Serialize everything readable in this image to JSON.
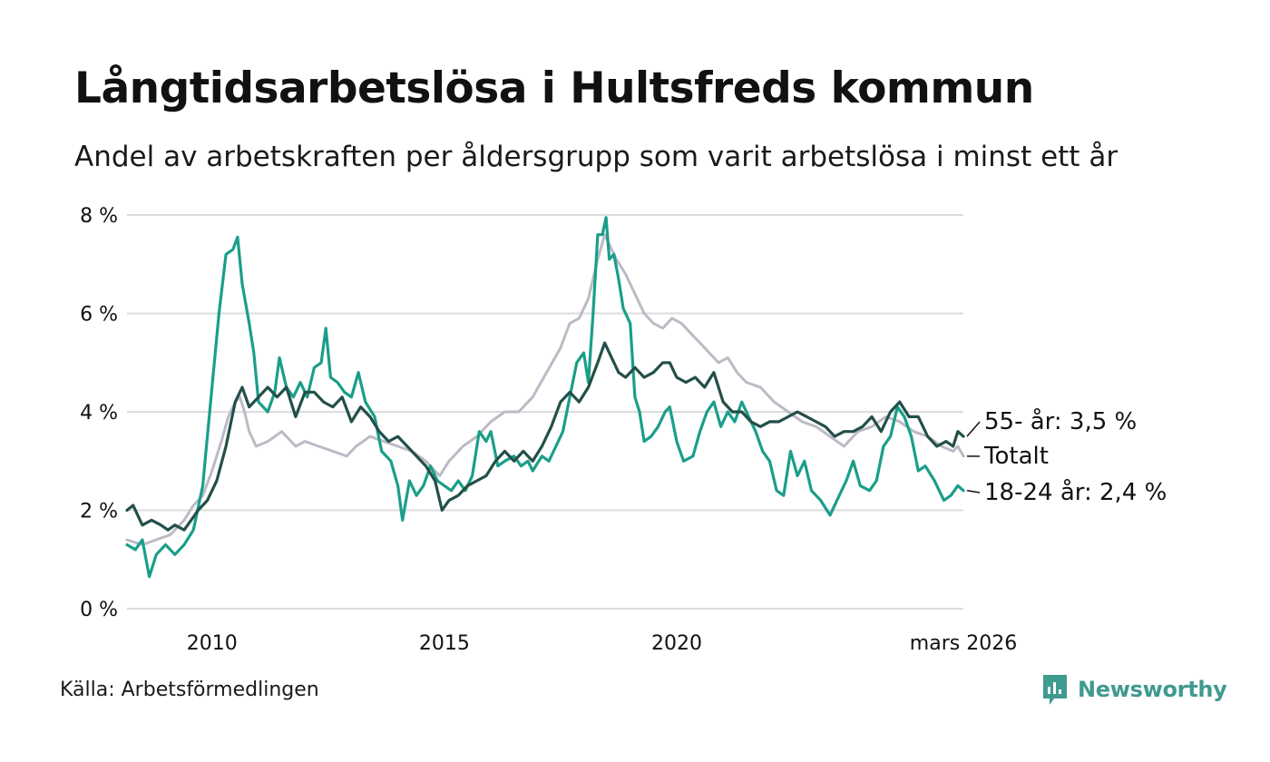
{
  "title": "Långtidsarbetslösa i Hultsfreds kommun",
  "subtitle": "Andel av arbetskraften per åldersgrupp som varit arbetslösa i minst ett år",
  "source": "Källa: Arbetsförmedlingen",
  "brand": {
    "name": "Newsworthy",
    "icon": "newsworthy-logo-icon",
    "color": "#3f9a8f"
  },
  "chart_data": {
    "type": "line",
    "ylim": [
      0,
      8
    ],
    "xlim": [
      2008.17,
      2026.17
    ],
    "yticks": [
      {
        "value": 0,
        "label": "0 %"
      },
      {
        "value": 2,
        "label": "2 %"
      },
      {
        "value": 4,
        "label": "4 %"
      },
      {
        "value": 6,
        "label": "6 %"
      },
      {
        "value": 8,
        "label": "8 %"
      }
    ],
    "xticks": [
      {
        "value": 2010,
        "label": "2010"
      },
      {
        "value": 2015,
        "label": "2015"
      },
      {
        "value": 2020,
        "label": "2020"
      },
      {
        "value": 2026.17,
        "label": "mars 2026"
      }
    ],
    "grid": true,
    "series": [
      {
        "name": "Totalt",
        "label": "Totalt",
        "color": "#bdbac6",
        "points": [
          [
            2008.17,
            1.4
          ],
          [
            2008.5,
            1.3
          ],
          [
            2008.8,
            1.4
          ],
          [
            2009.1,
            1.5
          ],
          [
            2009.4,
            1.8
          ],
          [
            2009.6,
            2.1
          ],
          [
            2009.8,
            2.3
          ],
          [
            2010.0,
            2.8
          ],
          [
            2010.2,
            3.4
          ],
          [
            2010.35,
            3.9
          ],
          [
            2010.5,
            4.2
          ],
          [
            2010.6,
            4.3
          ],
          [
            2010.7,
            4.0
          ],
          [
            2010.8,
            3.6
          ],
          [
            2010.95,
            3.3
          ],
          [
            2011.2,
            3.4
          ],
          [
            2011.5,
            3.6
          ],
          [
            2011.8,
            3.3
          ],
          [
            2012.0,
            3.4
          ],
          [
            2012.3,
            3.3
          ],
          [
            2012.6,
            3.2
          ],
          [
            2012.9,
            3.1
          ],
          [
            2013.1,
            3.3
          ],
          [
            2013.4,
            3.5
          ],
          [
            2013.7,
            3.4
          ],
          [
            2014.0,
            3.3
          ],
          [
            2014.3,
            3.2
          ],
          [
            2014.6,
            3.0
          ],
          [
            2014.9,
            2.7
          ],
          [
            2015.1,
            3.0
          ],
          [
            2015.4,
            3.3
          ],
          [
            2015.7,
            3.5
          ],
          [
            2016.0,
            3.8
          ],
          [
            2016.3,
            4.0
          ],
          [
            2016.6,
            4.0
          ],
          [
            2016.9,
            4.3
          ],
          [
            2017.2,
            4.8
          ],
          [
            2017.5,
            5.3
          ],
          [
            2017.7,
            5.8
          ],
          [
            2017.9,
            5.9
          ],
          [
            2018.1,
            6.3
          ],
          [
            2018.3,
            7.1
          ],
          [
            2018.45,
            7.6
          ],
          [
            2018.55,
            7.4
          ],
          [
            2018.7,
            7.1
          ],
          [
            2018.9,
            6.8
          ],
          [
            2019.1,
            6.4
          ],
          [
            2019.3,
            6.0
          ],
          [
            2019.5,
            5.8
          ],
          [
            2019.7,
            5.7
          ],
          [
            2019.9,
            5.9
          ],
          [
            2020.1,
            5.8
          ],
          [
            2020.3,
            5.6
          ],
          [
            2020.5,
            5.4
          ],
          [
            2020.7,
            5.2
          ],
          [
            2020.9,
            5.0
          ],
          [
            2021.1,
            5.1
          ],
          [
            2021.3,
            4.8
          ],
          [
            2021.5,
            4.6
          ],
          [
            2021.8,
            4.5
          ],
          [
            2022.1,
            4.2
          ],
          [
            2022.4,
            4.0
          ],
          [
            2022.7,
            3.8
          ],
          [
            2023.0,
            3.7
          ],
          [
            2023.3,
            3.5
          ],
          [
            2023.6,
            3.3
          ],
          [
            2023.9,
            3.6
          ],
          [
            2024.2,
            3.7
          ],
          [
            2024.5,
            3.9
          ],
          [
            2024.8,
            3.8
          ],
          [
            2025.1,
            3.6
          ],
          [
            2025.4,
            3.5
          ],
          [
            2025.7,
            3.3
          ],
          [
            2025.95,
            3.2
          ],
          [
            2026.05,
            3.3
          ],
          [
            2026.17,
            3.1
          ]
        ]
      },
      {
        "name": "18-24 år",
        "label": "18-24 år: 2,4 %",
        "color": "#1a9e8a",
        "points": [
          [
            2008.17,
            1.3
          ],
          [
            2008.35,
            1.2
          ],
          [
            2008.5,
            1.4
          ],
          [
            2008.65,
            0.65
          ],
          [
            2008.8,
            1.1
          ],
          [
            2009.0,
            1.3
          ],
          [
            2009.2,
            1.1
          ],
          [
            2009.4,
            1.3
          ],
          [
            2009.6,
            1.6
          ],
          [
            2009.8,
            2.5
          ],
          [
            2010.0,
            4.5
          ],
          [
            2010.15,
            6.0
          ],
          [
            2010.3,
            7.2
          ],
          [
            2010.45,
            7.3
          ],
          [
            2010.55,
            7.55
          ],
          [
            2010.65,
            6.6
          ],
          [
            2010.8,
            5.8
          ],
          [
            2010.9,
            5.2
          ],
          [
            2011.0,
            4.2
          ],
          [
            2011.2,
            4.0
          ],
          [
            2011.35,
            4.4
          ],
          [
            2011.45,
            5.1
          ],
          [
            2011.6,
            4.5
          ],
          [
            2011.75,
            4.3
          ],
          [
            2011.9,
            4.6
          ],
          [
            2012.05,
            4.3
          ],
          [
            2012.2,
            4.9
          ],
          [
            2012.35,
            5.0
          ],
          [
            2012.45,
            5.7
          ],
          [
            2012.55,
            4.7
          ],
          [
            2012.7,
            4.6
          ],
          [
            2012.85,
            4.4
          ],
          [
            2013.0,
            4.3
          ],
          [
            2013.15,
            4.8
          ],
          [
            2013.3,
            4.2
          ],
          [
            2013.5,
            3.9
          ],
          [
            2013.65,
            3.2
          ],
          [
            2013.85,
            3.0
          ],
          [
            2014.0,
            2.5
          ],
          [
            2014.1,
            1.8
          ],
          [
            2014.25,
            2.6
          ],
          [
            2014.4,
            2.3
          ],
          [
            2014.55,
            2.5
          ],
          [
            2014.7,
            2.9
          ],
          [
            2014.85,
            2.6
          ],
          [
            2015.0,
            2.5
          ],
          [
            2015.15,
            2.4
          ],
          [
            2015.3,
            2.6
          ],
          [
            2015.45,
            2.4
          ],
          [
            2015.6,
            2.7
          ],
          [
            2015.75,
            3.6
          ],
          [
            2015.9,
            3.4
          ],
          [
            2016.0,
            3.6
          ],
          [
            2016.15,
            2.9
          ],
          [
            2016.3,
            3.0
          ],
          [
            2016.5,
            3.1
          ],
          [
            2016.65,
            2.9
          ],
          [
            2016.8,
            3.0
          ],
          [
            2016.9,
            2.8
          ],
          [
            2017.1,
            3.1
          ],
          [
            2017.25,
            3.0
          ],
          [
            2017.4,
            3.3
          ],
          [
            2017.55,
            3.6
          ],
          [
            2017.7,
            4.3
          ],
          [
            2017.85,
            5.0
          ],
          [
            2018.0,
            5.2
          ],
          [
            2018.1,
            4.6
          ],
          [
            2018.2,
            6.0
          ],
          [
            2018.3,
            7.6
          ],
          [
            2018.4,
            7.6
          ],
          [
            2018.48,
            7.95
          ],
          [
            2018.55,
            7.1
          ],
          [
            2018.65,
            7.2
          ],
          [
            2018.75,
            6.7
          ],
          [
            2018.85,
            6.1
          ],
          [
            2019.0,
            5.8
          ],
          [
            2019.1,
            4.3
          ],
          [
            2019.2,
            4.0
          ],
          [
            2019.3,
            3.4
          ],
          [
            2019.45,
            3.5
          ],
          [
            2019.6,
            3.7
          ],
          [
            2019.75,
            4.0
          ],
          [
            2019.85,
            4.1
          ],
          [
            2020.0,
            3.4
          ],
          [
            2020.15,
            3.0
          ],
          [
            2020.35,
            3.1
          ],
          [
            2020.5,
            3.6
          ],
          [
            2020.65,
            4.0
          ],
          [
            2020.8,
            4.2
          ],
          [
            2020.95,
            3.7
          ],
          [
            2021.1,
            4.0
          ],
          [
            2021.25,
            3.8
          ],
          [
            2021.4,
            4.2
          ],
          [
            2021.55,
            3.9
          ],
          [
            2021.7,
            3.6
          ],
          [
            2021.85,
            3.2
          ],
          [
            2022.0,
            3.0
          ],
          [
            2022.15,
            2.4
          ],
          [
            2022.3,
            2.3
          ],
          [
            2022.45,
            3.2
          ],
          [
            2022.6,
            2.7
          ],
          [
            2022.75,
            3.0
          ],
          [
            2022.9,
            2.4
          ],
          [
            2023.1,
            2.2
          ],
          [
            2023.3,
            1.9
          ],
          [
            2023.5,
            2.3
          ],
          [
            2023.65,
            2.6
          ],
          [
            2023.8,
            3.0
          ],
          [
            2023.95,
            2.5
          ],
          [
            2024.15,
            2.4
          ],
          [
            2024.3,
            2.6
          ],
          [
            2024.45,
            3.3
          ],
          [
            2024.6,
            3.5
          ],
          [
            2024.75,
            4.1
          ],
          [
            2024.9,
            3.9
          ],
          [
            2025.05,
            3.5
          ],
          [
            2025.2,
            2.8
          ],
          [
            2025.35,
            2.9
          ],
          [
            2025.55,
            2.6
          ],
          [
            2025.75,
            2.2
          ],
          [
            2025.9,
            2.3
          ],
          [
            2026.05,
            2.5
          ],
          [
            2026.17,
            2.4
          ]
        ]
      },
      {
        "name": "55- år",
        "label": "55- år: 3,5 %",
        "color": "#234f49",
        "points": [
          [
            2008.17,
            2.0
          ],
          [
            2008.3,
            2.1
          ],
          [
            2008.5,
            1.7
          ],
          [
            2008.7,
            1.8
          ],
          [
            2008.9,
            1.7
          ],
          [
            2009.05,
            1.6
          ],
          [
            2009.2,
            1.7
          ],
          [
            2009.4,
            1.6
          ],
          [
            2009.55,
            1.8
          ],
          [
            2009.7,
            2.0
          ],
          [
            2009.9,
            2.2
          ],
          [
            2010.1,
            2.6
          ],
          [
            2010.3,
            3.3
          ],
          [
            2010.5,
            4.2
          ],
          [
            2010.65,
            4.5
          ],
          [
            2010.8,
            4.1
          ],
          [
            2011.0,
            4.3
          ],
          [
            2011.2,
            4.5
          ],
          [
            2011.4,
            4.3
          ],
          [
            2011.6,
            4.5
          ],
          [
            2011.8,
            3.9
          ],
          [
            2012.0,
            4.4
          ],
          [
            2012.2,
            4.4
          ],
          [
            2012.4,
            4.2
          ],
          [
            2012.6,
            4.1
          ],
          [
            2012.8,
            4.3
          ],
          [
            2013.0,
            3.8
          ],
          [
            2013.2,
            4.1
          ],
          [
            2013.4,
            3.9
          ],
          [
            2013.6,
            3.6
          ],
          [
            2013.8,
            3.4
          ],
          [
            2014.0,
            3.5
          ],
          [
            2014.2,
            3.3
          ],
          [
            2014.4,
            3.1
          ],
          [
            2014.6,
            2.9
          ],
          [
            2014.8,
            2.6
          ],
          [
            2014.95,
            2.0
          ],
          [
            2015.1,
            2.2
          ],
          [
            2015.3,
            2.3
          ],
          [
            2015.5,
            2.5
          ],
          [
            2015.7,
            2.6
          ],
          [
            2015.9,
            2.7
          ],
          [
            2016.1,
            3.0
          ],
          [
            2016.3,
            3.2
          ],
          [
            2016.5,
            3.0
          ],
          [
            2016.7,
            3.2
          ],
          [
            2016.9,
            3.0
          ],
          [
            2017.1,
            3.3
          ],
          [
            2017.3,
            3.7
          ],
          [
            2017.5,
            4.2
          ],
          [
            2017.7,
            4.4
          ],
          [
            2017.9,
            4.2
          ],
          [
            2018.1,
            4.5
          ],
          [
            2018.3,
            5.0
          ],
          [
            2018.45,
            5.4
          ],
          [
            2018.6,
            5.1
          ],
          [
            2018.75,
            4.8
          ],
          [
            2018.9,
            4.7
          ],
          [
            2019.1,
            4.9
          ],
          [
            2019.3,
            4.7
          ],
          [
            2019.5,
            4.8
          ],
          [
            2019.7,
            5.0
          ],
          [
            2019.85,
            5.0
          ],
          [
            2020.0,
            4.7
          ],
          [
            2020.2,
            4.6
          ],
          [
            2020.4,
            4.7
          ],
          [
            2020.6,
            4.5
          ],
          [
            2020.8,
            4.8
          ],
          [
            2021.0,
            4.2
          ],
          [
            2021.2,
            4.0
          ],
          [
            2021.4,
            4.0
          ],
          [
            2021.6,
            3.8
          ],
          [
            2021.8,
            3.7
          ],
          [
            2022.0,
            3.8
          ],
          [
            2022.2,
            3.8
          ],
          [
            2022.4,
            3.9
          ],
          [
            2022.6,
            4.0
          ],
          [
            2022.8,
            3.9
          ],
          [
            2023.0,
            3.8
          ],
          [
            2023.2,
            3.7
          ],
          [
            2023.4,
            3.5
          ],
          [
            2023.6,
            3.6
          ],
          [
            2023.8,
            3.6
          ],
          [
            2024.0,
            3.7
          ],
          [
            2024.2,
            3.9
          ],
          [
            2024.4,
            3.6
          ],
          [
            2024.6,
            4.0
          ],
          [
            2024.8,
            4.2
          ],
          [
            2025.0,
            3.9
          ],
          [
            2025.2,
            3.9
          ],
          [
            2025.4,
            3.5
          ],
          [
            2025.6,
            3.3
          ],
          [
            2025.8,
            3.4
          ],
          [
            2025.95,
            3.3
          ],
          [
            2026.05,
            3.6
          ],
          [
            2026.17,
            3.5
          ]
        ]
      }
    ]
  }
}
